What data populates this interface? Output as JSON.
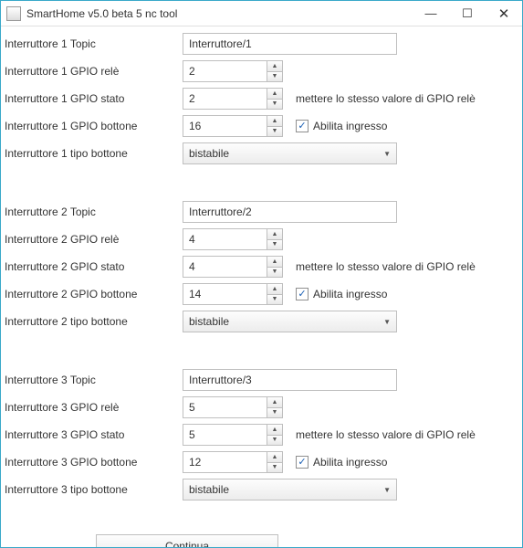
{
  "window": {
    "title": "SmartHome v5.0 beta 5 nc tool"
  },
  "labels": {
    "topic": "Topic",
    "gpio_rele": "GPIO relè",
    "gpio_stato": "GPIO stato",
    "gpio_bottone": "GPIO bottone",
    "tipo_bottone": "tipo bottone",
    "hint_stato": "mettere lo stesso valore di GPIO relè",
    "abilita_ingresso": "Abilita ingresso"
  },
  "switches": [
    {
      "prefix": "Interruttore 1",
      "topic": "Interruttore/1",
      "gpio_rele": "2",
      "gpio_stato": "2",
      "gpio_bottone": "16",
      "abilita": true,
      "tipo": "bistabile"
    },
    {
      "prefix": "Interruttore 2",
      "topic": "Interruttore/2",
      "gpio_rele": "4",
      "gpio_stato": "4",
      "gpio_bottone": "14",
      "abilita": true,
      "tipo": "bistabile"
    },
    {
      "prefix": "Interruttore 3",
      "topic": "Interruttore/3",
      "gpio_rele": "5",
      "gpio_stato": "5",
      "gpio_bottone": "12",
      "abilita": true,
      "tipo": "bistabile"
    }
  ],
  "footer": {
    "continue": "Continua"
  }
}
